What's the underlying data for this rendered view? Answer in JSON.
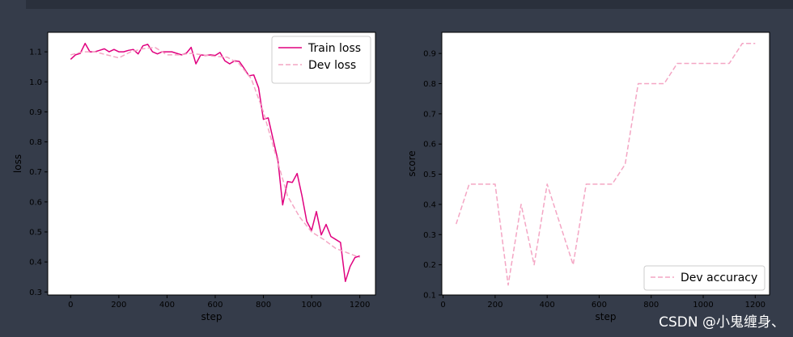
{
  "chart_data": [
    {
      "type": "line",
      "xlabel": "step",
      "ylabel": "loss",
      "xlim": [
        -95,
        1265
      ],
      "ylim": [
        0.29,
        1.165
      ],
      "xticks": [
        0,
        200,
        400,
        600,
        800,
        1000,
        1200
      ],
      "yticks": [
        0.3,
        0.4,
        0.5,
        0.6,
        0.7,
        0.8,
        0.9,
        1.0,
        1.1
      ],
      "ytick_labels": [
        "0.3",
        "0.4",
        "0.5",
        "0.6",
        "0.7",
        "0.8",
        "0.9",
        "1.0",
        "1.1"
      ],
      "legend_position": "top-right",
      "grid": false,
      "series": [
        {
          "name": "Train loss",
          "style": "solid",
          "color": "#e0007f",
          "x": [
            0,
            20,
            40,
            60,
            80,
            100,
            120,
            140,
            160,
            180,
            200,
            220,
            240,
            260,
            280,
            300,
            320,
            340,
            360,
            380,
            400,
            420,
            440,
            460,
            480,
            500,
            520,
            540,
            560,
            580,
            600,
            620,
            640,
            660,
            680,
            700,
            720,
            740,
            760,
            780,
            800,
            820,
            840,
            860,
            880,
            900,
            920,
            940,
            960,
            980,
            1000,
            1020,
            1040,
            1060,
            1080,
            1100,
            1120,
            1140,
            1160,
            1180,
            1200
          ],
          "values": [
            1.075,
            1.09,
            1.095,
            1.128,
            1.1,
            1.1,
            1.105,
            1.11,
            1.1,
            1.108,
            1.1,
            1.1,
            1.105,
            1.108,
            1.093,
            1.12,
            1.125,
            1.1,
            1.093,
            1.1,
            1.1,
            1.1,
            1.095,
            1.09,
            1.095,
            1.115,
            1.06,
            1.09,
            1.088,
            1.09,
            1.088,
            1.098,
            1.07,
            1.06,
            1.07,
            1.068,
            1.045,
            1.02,
            1.023,
            0.98,
            0.875,
            0.88,
            0.81,
            0.74,
            0.59,
            0.668,
            0.665,
            0.695,
            0.62,
            0.535,
            0.505,
            0.568,
            0.49,
            0.525,
            0.485,
            0.475,
            0.465,
            0.335,
            0.385,
            0.415,
            0.42
          ]
        },
        {
          "name": "Dev loss",
          "style": "dashed",
          "color": "#f4a6c4",
          "x": [
            0,
            50,
            100,
            150,
            200,
            250,
            300,
            350,
            400,
            450,
            500,
            550,
            600,
            650,
            700,
            750,
            800,
            850,
            900,
            950,
            1000,
            1050,
            1100,
            1150,
            1200
          ],
          "values": [
            1.09,
            1.1,
            1.1,
            1.09,
            1.08,
            1.1,
            1.11,
            1.115,
            1.09,
            1.09,
            1.095,
            1.09,
            1.085,
            1.082,
            1.06,
            1.01,
            0.9,
            0.76,
            0.62,
            0.55,
            0.5,
            0.475,
            0.445,
            0.43,
            0.415
          ]
        }
      ]
    },
    {
      "type": "line",
      "xlabel": "step",
      "ylabel": "score",
      "xlim": [
        -5,
        1255
      ],
      "ylim": [
        0.1,
        0.97
      ],
      "xticks": [
        0,
        200,
        400,
        600,
        800,
        1000,
        1200
      ],
      "yticks": [
        0.1,
        0.2,
        0.3,
        0.4,
        0.5,
        0.6,
        0.7,
        0.8,
        0.9
      ],
      "ytick_labels": [
        "0.1",
        "0.2",
        "0.3",
        "0.4",
        "0.5",
        "0.6",
        "0.7",
        "0.8",
        "0.9"
      ],
      "legend_position": "bottom-right",
      "grid": false,
      "series": [
        {
          "name": "Dev accuracy",
          "style": "dashed",
          "color": "#f4a6c4",
          "x": [
            50,
            100,
            150,
            200,
            250,
            300,
            350,
            400,
            450,
            500,
            550,
            600,
            650,
            700,
            750,
            800,
            850,
            900,
            950,
            1000,
            1050,
            1100,
            1150,
            1200
          ],
          "values": [
            0.335,
            0.467,
            0.467,
            0.467,
            0.133,
            0.4,
            0.2,
            0.467,
            0.333,
            0.2,
            0.467,
            0.467,
            0.467,
            0.533,
            0.8,
            0.8,
            0.8,
            0.867,
            0.867,
            0.867,
            0.867,
            0.867,
            0.933,
            0.933
          ]
        }
      ]
    }
  ],
  "watermark": "CSDN @小鬼缠身、",
  "colors": {
    "background": "#353c4a",
    "topbar": "#2a303c",
    "plot_bg": "#ffffff"
  }
}
